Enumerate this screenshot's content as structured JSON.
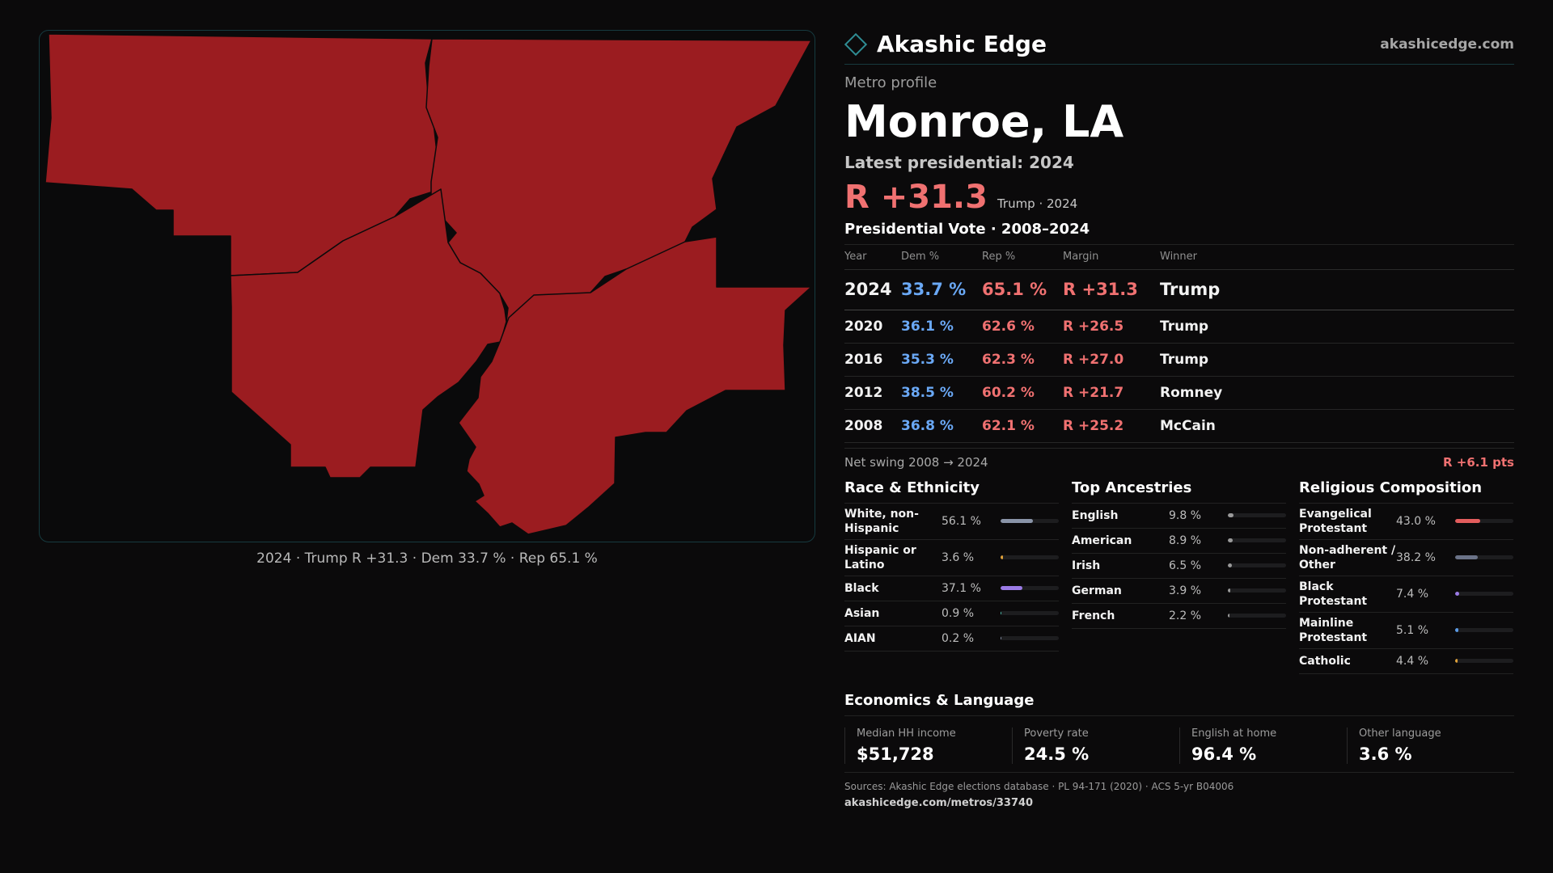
{
  "brand": {
    "name": "Akashic Edge",
    "url": "akashicedge.com",
    "icon": "diamond-logo-icon",
    "accent": "#2f8d94"
  },
  "profile": {
    "subtitle": "Metro profile",
    "title": "Monroe, LA",
    "latest_label": "Latest presidential: 2024",
    "headline_margin": "R +31.3",
    "headline_note": "Trump · 2024"
  },
  "map": {
    "caption": "2024 · Trump R +31.3 · Dem 33.7 % · Rep 65.1 %",
    "fill_color": "#9b1c20"
  },
  "vote": {
    "title": "Presidential Vote · 2008–2024",
    "headers": {
      "year": "Year",
      "dem": "Dem %",
      "rep": "Rep %",
      "margin": "Margin",
      "winner": "Winner"
    },
    "rows": [
      {
        "year": "2024",
        "dem": "33.7 %",
        "rep": "65.1 %",
        "margin": "R +31.3",
        "winner": "Trump"
      },
      {
        "year": "2020",
        "dem": "36.1 %",
        "rep": "62.6 %",
        "margin": "R +26.5",
        "winner": "Trump"
      },
      {
        "year": "2016",
        "dem": "35.3 %",
        "rep": "62.3 %",
        "margin": "R +27.0",
        "winner": "Trump"
      },
      {
        "year": "2012",
        "dem": "38.5 %",
        "rep": "60.2 %",
        "margin": "R +21.7",
        "winner": "Romney"
      },
      {
        "year": "2008",
        "dem": "36.8 %",
        "rep": "62.1 %",
        "margin": "R +25.2",
        "winner": "McCain"
      }
    ],
    "swing_label": "Net swing 2008 → 2024",
    "swing_value": "R +6.1 pts",
    "colors": {
      "dem": "#6aa8f5",
      "rep": "#f07171"
    }
  },
  "race": {
    "title": "Race & Ethnicity",
    "items": [
      {
        "label": "White, non-Hispanic",
        "pct": "56.1 %",
        "fraction": 0.561,
        "color": "#8a94a8"
      },
      {
        "label": "Hispanic or Latino",
        "pct": "3.6 %",
        "fraction": 0.036,
        "color": "#e0a23a"
      },
      {
        "label": "Black",
        "pct": "37.1 %",
        "fraction": 0.371,
        "color": "#9b7be6"
      },
      {
        "label": "Asian",
        "pct": "0.9 %",
        "fraction": 0.009,
        "color": "#4fc3b0"
      },
      {
        "label": "AIAN",
        "pct": "0.2 %",
        "fraction": 0.002,
        "color": "#8a94a8"
      }
    ]
  },
  "ancestry": {
    "title": "Top Ancestries",
    "items": [
      {
        "label": "English",
        "pct": "9.8 %",
        "fraction": 0.098,
        "color": "#9a9a9a"
      },
      {
        "label": "American",
        "pct": "8.9 %",
        "fraction": 0.089,
        "color": "#9a9a9a"
      },
      {
        "label": "Irish",
        "pct": "6.5 %",
        "fraction": 0.065,
        "color": "#9a9a9a"
      },
      {
        "label": "German",
        "pct": "3.9 %",
        "fraction": 0.039,
        "color": "#9a9a9a"
      },
      {
        "label": "French",
        "pct": "2.2 %",
        "fraction": 0.022,
        "color": "#9a9a9a"
      }
    ]
  },
  "religion": {
    "title": "Religious Composition",
    "items": [
      {
        "label": "Evangelical Protestant",
        "pct": "43.0 %",
        "fraction": 0.43,
        "color": "#e35d5d"
      },
      {
        "label": "Non-adherent / Other",
        "pct": "38.2 %",
        "fraction": 0.382,
        "color": "#6b7388"
      },
      {
        "label": "Black Protestant",
        "pct": "7.4 %",
        "fraction": 0.074,
        "color": "#9b7be6"
      },
      {
        "label": "Mainline Protestant",
        "pct": "5.1 %",
        "fraction": 0.051,
        "color": "#5b9be6"
      },
      {
        "label": "Catholic",
        "pct": "4.4 %",
        "fraction": 0.044,
        "color": "#e0a23a"
      }
    ]
  },
  "economics": {
    "title": "Economics & Language",
    "items": [
      {
        "label": "Median HH income",
        "value": "$51,728"
      },
      {
        "label": "Poverty rate",
        "value": "24.5 %"
      },
      {
        "label": "English at home",
        "value": "96.4 %"
      },
      {
        "label": "Other language",
        "value": "3.6 %"
      }
    ]
  },
  "footer": {
    "sources": "Sources: Akashic Edge elections database · PL 94-171 (2020) · ACS 5-yr B04006",
    "url": "akashicedge.com/metros/33740"
  }
}
